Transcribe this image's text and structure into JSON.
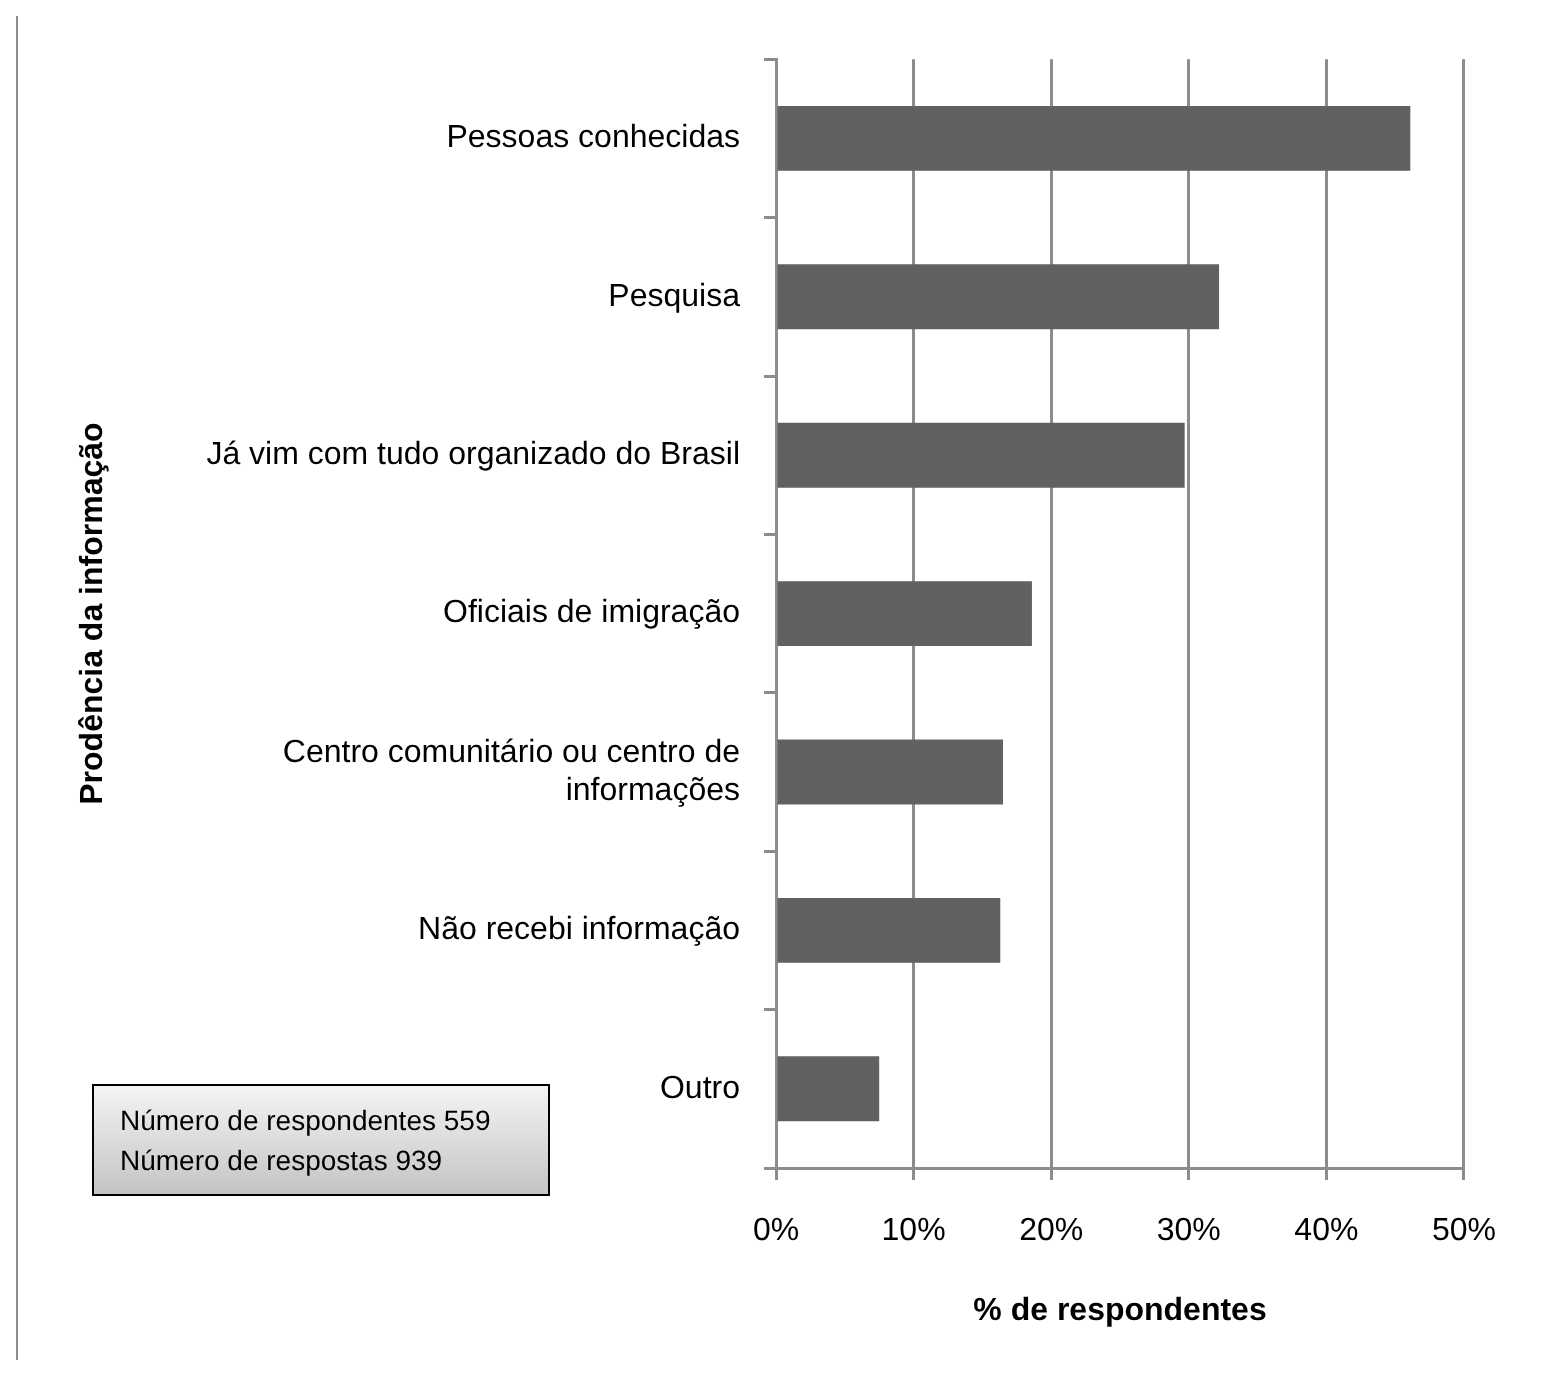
{
  "chart_data": {
    "type": "bar",
    "orientation": "horizontal",
    "categories": [
      "Pessoas conhecidas",
      "Pesquisa",
      "Já vim com tudo organizado do Brasil",
      "Oficiais de imigração",
      "Centro comunitário ou centro de informações",
      "Não recebi informação",
      "Outro"
    ],
    "values": [
      46.1,
      32.2,
      29.7,
      18.6,
      16.5,
      16.3,
      7.5
    ],
    "color": "#616161",
    "xlim": [
      0,
      50
    ],
    "xticks": [
      {
        "value": 0,
        "label": "0%"
      },
      {
        "value": 10,
        "label": "10%"
      },
      {
        "value": 20,
        "label": "20%"
      },
      {
        "value": 30,
        "label": "30%"
      },
      {
        "value": 40,
        "label": "40%"
      },
      {
        "value": 50,
        "label": "50%"
      }
    ],
    "xlabel": "% de respondentes",
    "ylabel": "Prodência da informação",
    "grid": "x",
    "legend": false,
    "annotations": [
      "Número de respondentes 559",
      "Número de respostas 939"
    ]
  }
}
